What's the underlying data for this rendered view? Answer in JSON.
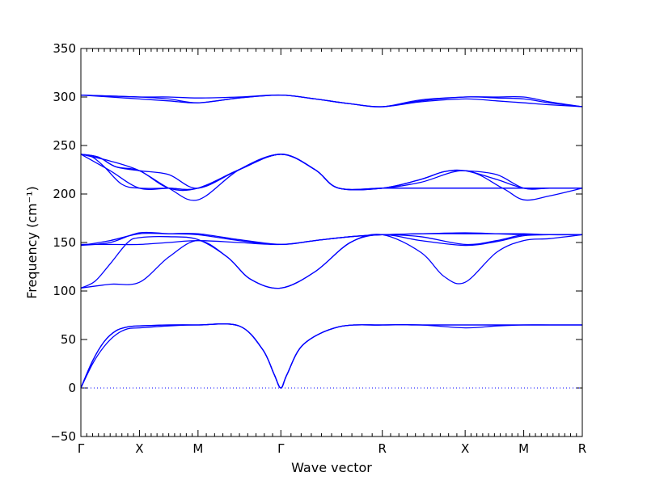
{
  "chart_data": {
    "type": "line",
    "title": "",
    "xlabel": "Wave vector",
    "ylabel": "Frequency (cm⁻¹)",
    "ylim": [
      -50,
      350
    ],
    "yticks": [
      -50,
      0,
      50,
      100,
      150,
      200,
      250,
      300,
      350
    ],
    "grid": false,
    "line_color": "#0000ff",
    "x_kpoints": [
      {
        "label": "Γ",
        "x": 0.0
      },
      {
        "label": "X",
        "x": 0.5
      },
      {
        "label": "M",
        "x": 1.0
      },
      {
        "label": "Γ",
        "x": 1.7071
      },
      {
        "label": "R",
        "x": 2.5731
      },
      {
        "label": "X",
        "x": 3.2802
      },
      {
        "label": "M",
        "x": 3.7802
      },
      {
        "label": "R",
        "x": 4.2802
      }
    ],
    "zero_line": {
      "y": 0,
      "style": "dotted"
    },
    "bands": [
      {
        "x": [
          0,
          0.1,
          0.2,
          0.3,
          0.4,
          0.5,
          0.75,
          1.0,
          1.35,
          1.55,
          1.65,
          1.7071,
          1.76,
          1.9,
          2.2,
          2.5731,
          2.9,
          3.2802,
          3.55,
          3.7802,
          4.0,
          4.2802
        ],
        "y": [
          0,
          25,
          43,
          55,
          61,
          62,
          64,
          65,
          64,
          40,
          14,
          0,
          14,
          45,
          63,
          65,
          65,
          62,
          64,
          65,
          65,
          65
        ]
      },
      {
        "x": [
          0,
          0.1,
          0.2,
          0.3,
          0.4,
          0.5,
          0.75,
          1.0,
          1.35,
          1.55,
          1.65,
          1.7071,
          1.76,
          1.9,
          2.2,
          2.5731,
          2.9,
          3.2802,
          3.55,
          3.7802,
          4.0,
          4.2802
        ],
        "y": [
          0,
          28,
          48,
          59,
          63,
          64,
          65,
          65,
          64,
          40,
          14,
          0,
          14,
          45,
          63,
          65,
          65,
          65,
          65,
          65,
          65,
          65
        ]
      },
      {
        "x": [
          0,
          0.1,
          0.2,
          0.3,
          0.4,
          0.5,
          0.75,
          1.0,
          1.35,
          1.55,
          1.65,
          1.7071,
          1.76,
          1.9,
          2.2,
          2.5731,
          2.9,
          3.2802,
          3.55,
          3.7802,
          4.0,
          4.2802
        ],
        "y": [
          0,
          28,
          48,
          59,
          63,
          64,
          65,
          65,
          64,
          40,
          14,
          0,
          14,
          45,
          63,
          65,
          65,
          65,
          65,
          65,
          65,
          65
        ]
      },
      {
        "x": [
          0,
          0.25,
          0.5,
          0.75,
          1.0,
          1.25,
          1.45,
          1.7071,
          2.0,
          2.3,
          2.5731,
          2.9,
          3.1,
          3.2802,
          3.55,
          3.7802,
          4.0,
          4.2802
        ],
        "y": [
          103,
          107,
          109,
          135,
          152,
          135,
          112,
          103,
          120,
          150,
          158,
          140,
          115,
          109,
          140,
          152,
          154,
          158
        ]
      },
      {
        "x": [
          0,
          0.12,
          0.25,
          0.4,
          0.5,
          0.75,
          1.0,
          1.25,
          1.45,
          1.7071,
          2.0,
          2.3,
          2.5731,
          2.9,
          3.2802,
          3.55,
          3.7802,
          4.0,
          4.2802
        ],
        "y": [
          103,
          110,
          128,
          150,
          155,
          156,
          153,
          135,
          112,
          103,
          120,
          150,
          158,
          152,
          147,
          151,
          157,
          158,
          158
        ]
      },
      {
        "x": [
          0,
          0.25,
          0.5,
          0.75,
          1.0,
          1.35,
          1.7071,
          2.0,
          2.3,
          2.5731,
          2.9,
          3.2802,
          3.55,
          3.7802,
          4.0,
          4.2802
        ],
        "y": [
          148,
          148,
          148,
          150,
          152,
          150,
          148,
          152,
          156,
          158,
          156,
          148,
          152,
          158,
          158,
          158
        ]
      },
      {
        "x": [
          0,
          0.25,
          0.5,
          0.75,
          1.0,
          1.35,
          1.7071,
          2.0,
          2.3,
          2.5731,
          2.9,
          3.2802,
          3.55,
          3.7802,
          4.0,
          4.2802
        ],
        "y": [
          147,
          150,
          160,
          159,
          158,
          152,
          148,
          152,
          156,
          158,
          159,
          160,
          159,
          158,
          158,
          158
        ]
      },
      {
        "x": [
          0,
          0.25,
          0.5,
          0.75,
          1.0,
          1.35,
          1.7071,
          2.0,
          2.3,
          2.5731,
          2.9,
          3.2802,
          3.55,
          3.7802,
          4.0,
          4.2802
        ],
        "y": [
          147,
          152,
          159,
          159,
          159,
          153,
          148,
          152,
          156,
          158,
          159,
          159,
          159,
          159,
          158,
          158
        ]
      },
      {
        "x": [
          0,
          0.25,
          0.5,
          0.75,
          1.0,
          1.35,
          1.7071,
          2.0,
          2.2,
          2.5731,
          2.9,
          3.2802,
          3.55,
          3.7802,
          4.0,
          4.2802
        ],
        "y": [
          241,
          224,
          206,
          206,
          206,
          225,
          241,
          225,
          206,
          206,
          206,
          206,
          206,
          206,
          206,
          206
        ]
      },
      {
        "x": [
          0,
          0.15,
          0.3,
          0.5,
          0.75,
          1.0,
          1.35,
          1.7071,
          2.0,
          2.2,
          2.5731,
          2.9,
          3.1,
          3.2802,
          3.55,
          3.7802,
          4.0,
          4.2802
        ],
        "y": [
          241,
          238,
          228,
          224,
          206,
          206,
          225,
          241,
          225,
          206,
          206,
          215,
          223,
          224,
          215,
          206,
          206,
          206
        ]
      },
      {
        "x": [
          0,
          0.15,
          0.3,
          0.5,
          0.75,
          1.0,
          1.35,
          1.7071,
          2.0,
          2.2,
          2.5731,
          2.9,
          3.1,
          3.2802,
          3.55,
          3.7802,
          4.0,
          4.2802
        ],
        "y": [
          241,
          238,
          228,
          224,
          220,
          206,
          225,
          241,
          225,
          206,
          206,
          215,
          223,
          224,
          220,
          206,
          206,
          206
        ]
      },
      {
        "x": [
          0,
          0.1,
          0.2,
          0.35,
          0.5,
          0.75,
          1.0,
          1.35,
          1.7071,
          2.0,
          2.2,
          2.5731,
          2.9,
          3.2802,
          3.5,
          3.7802,
          4.0,
          4.2802
        ],
        "y": [
          241,
          238,
          228,
          210,
          206,
          206,
          206,
          225,
          241,
          225,
          206,
          206,
          206,
          206,
          206,
          206,
          206,
          206
        ]
      },
      {
        "x": [
          0,
          0.25,
          0.5,
          0.75,
          1.0,
          1.35,
          1.7071,
          2.0,
          2.2,
          2.5731,
          2.9,
          3.2802,
          3.6,
          3.7802,
          4.0,
          4.2802
        ],
        "y": [
          241,
          234,
          224,
          206,
          194,
          225,
          241,
          225,
          206,
          206,
          212,
          224,
          206,
          194,
          198,
          206
        ]
      },
      {
        "x": [
          0,
          0.25,
          0.5,
          0.75,
          1.0,
          1.35,
          1.7071,
          2.0,
          2.3,
          2.5731,
          2.9,
          3.2802,
          3.55,
          3.7802,
          4.0,
          4.2802
        ],
        "y": [
          302,
          300,
          298,
          296,
          294,
          299,
          302,
          298,
          293,
          290,
          296,
          300,
          299,
          298,
          294,
          290
        ]
      },
      {
        "x": [
          0,
          0.25,
          0.5,
          0.75,
          1.0,
          1.35,
          1.7071,
          2.0,
          2.3,
          2.5731,
          2.9,
          3.2802,
          3.55,
          3.7802,
          4.0,
          4.2802
        ],
        "y": [
          302,
          301,
          300,
          298,
          294,
          299,
          302,
          298,
          293,
          290,
          295,
          298,
          296,
          294,
          292,
          290
        ]
      },
      {
        "x": [
          0,
          0.25,
          0.5,
          0.75,
          1.0,
          1.35,
          1.7071,
          2.0,
          2.3,
          2.5731,
          2.9,
          3.2802,
          3.55,
          3.7802,
          4.0,
          4.2802
        ],
        "y": [
          302,
          301,
          300,
          300,
          299,
          300,
          302,
          298,
          293,
          290,
          297,
          300,
          300,
          300,
          295,
          290
        ]
      }
    ]
  }
}
